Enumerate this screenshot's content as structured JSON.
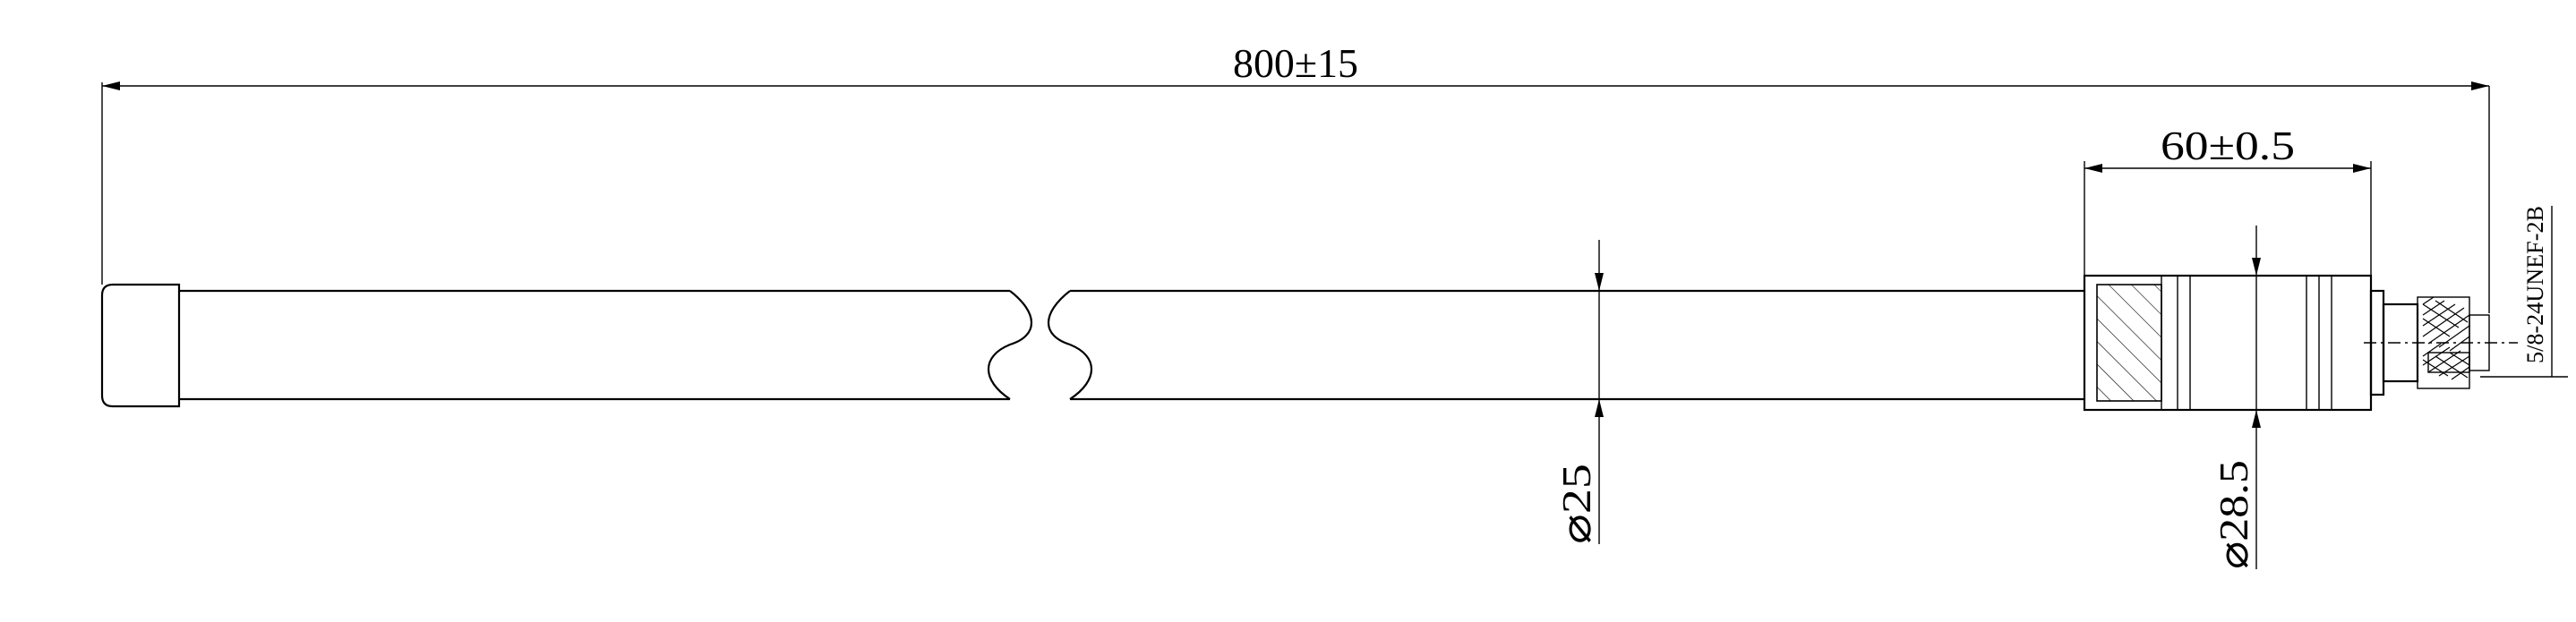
{
  "drawing": {
    "dimensions": {
      "overall_length": "800±15",
      "connector_length": "60±0.5",
      "tube_diameter": "⌀25",
      "connector_diameter": "⌀28.5",
      "thread_spec": "5/8-24UNEF-2B"
    }
  }
}
